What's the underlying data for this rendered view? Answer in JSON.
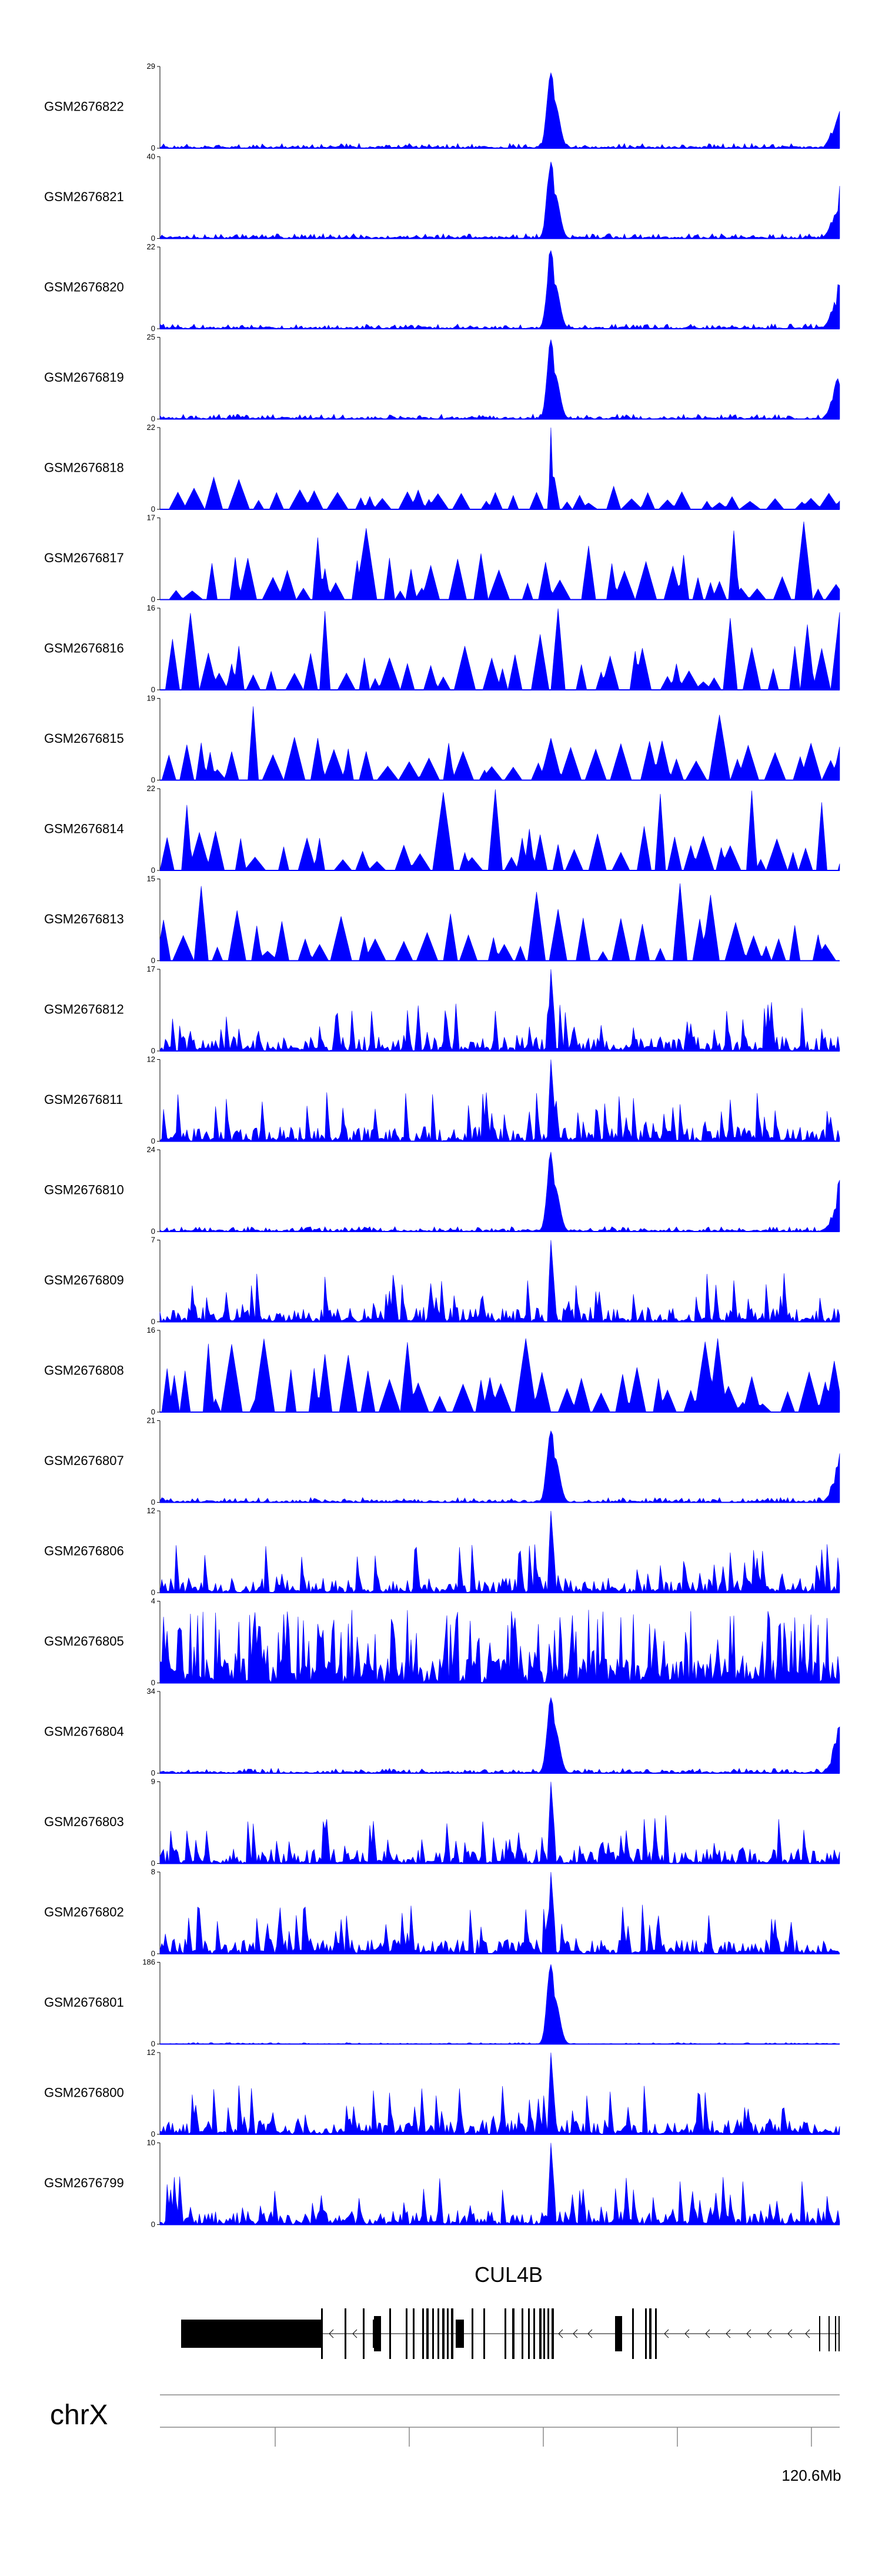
{
  "chart_data": {
    "type": "area",
    "tracks": [
      {
        "name": "GSM2676822",
        "ymin": 0,
        "ymax": 29,
        "profile": "peak",
        "seed": 1
      },
      {
        "name": "GSM2676821",
        "ymin": 0,
        "ymax": 40,
        "profile": "peak",
        "seed": 2
      },
      {
        "name": "GSM2676820",
        "ymin": 0,
        "ymax": 22,
        "profile": "peak",
        "seed": 3
      },
      {
        "name": "GSM2676819",
        "ymin": 0,
        "ymax": 25,
        "profile": "peak",
        "seed": 4
      },
      {
        "name": "GSM2676818",
        "ymin": 0,
        "ymax": 22,
        "profile": "sparse-peak",
        "seed": 5
      },
      {
        "name": "GSM2676817",
        "ymin": 0,
        "ymax": 17,
        "profile": "sparse",
        "seed": 6
      },
      {
        "name": "GSM2676816",
        "ymin": 0,
        "ymax": 16,
        "profile": "sparse",
        "seed": 7
      },
      {
        "name": "GSM2676815",
        "ymin": 0,
        "ymax": 19,
        "profile": "sparse",
        "seed": 8
      },
      {
        "name": "GSM2676814",
        "ymin": 0,
        "ymax": 22,
        "profile": "sparse",
        "seed": 9
      },
      {
        "name": "GSM2676813",
        "ymin": 0,
        "ymax": 15,
        "profile": "sparse",
        "seed": 10
      },
      {
        "name": "GSM2676812",
        "ymin": 0,
        "ymax": 17,
        "profile": "dense-peak",
        "seed": 11
      },
      {
        "name": "GSM2676811",
        "ymin": 0,
        "ymax": 12,
        "profile": "dense-peak",
        "seed": 12
      },
      {
        "name": "GSM2676810",
        "ymin": 0,
        "ymax": 24,
        "profile": "peak",
        "seed": 13
      },
      {
        "name": "GSM2676809",
        "ymin": 0,
        "ymax": 7,
        "profile": "dense-peak",
        "seed": 14
      },
      {
        "name": "GSM2676808",
        "ymin": 0,
        "ymax": 16,
        "profile": "sparse",
        "seed": 15
      },
      {
        "name": "GSM2676807",
        "ymin": 0,
        "ymax": 21,
        "profile": "peak",
        "seed": 16
      },
      {
        "name": "GSM2676806",
        "ymin": 0,
        "ymax": 12,
        "profile": "dense-peak",
        "seed": 17
      },
      {
        "name": "GSM2676805",
        "ymin": 0,
        "ymax": 4,
        "profile": "noisy",
        "seed": 18
      },
      {
        "name": "GSM2676804",
        "ymin": 0,
        "ymax": 34,
        "profile": "peak",
        "seed": 19
      },
      {
        "name": "GSM2676803",
        "ymin": 0,
        "ymax": 9,
        "profile": "dense-peak",
        "seed": 20
      },
      {
        "name": "GSM2676802",
        "ymin": 0,
        "ymax": 8,
        "profile": "dense-peak",
        "seed": 21
      },
      {
        "name": "GSM2676801",
        "ymin": 0,
        "ymax": 186,
        "profile": "single-peak",
        "seed": 22
      },
      {
        "name": "GSM2676800",
        "ymin": 0,
        "ymax": 12,
        "profile": "dense-peak",
        "seed": 23
      },
      {
        "name": "GSM2676799",
        "ymin": 0,
        "ymax": 10,
        "profile": "dense-peak",
        "seed": 24
      }
    ],
    "gene": {
      "name": "CUL4B",
      "strand": "-"
    },
    "chromosome": "chrX",
    "coordinate_label": "120.6Mb",
    "track_color": "#0000ff"
  }
}
